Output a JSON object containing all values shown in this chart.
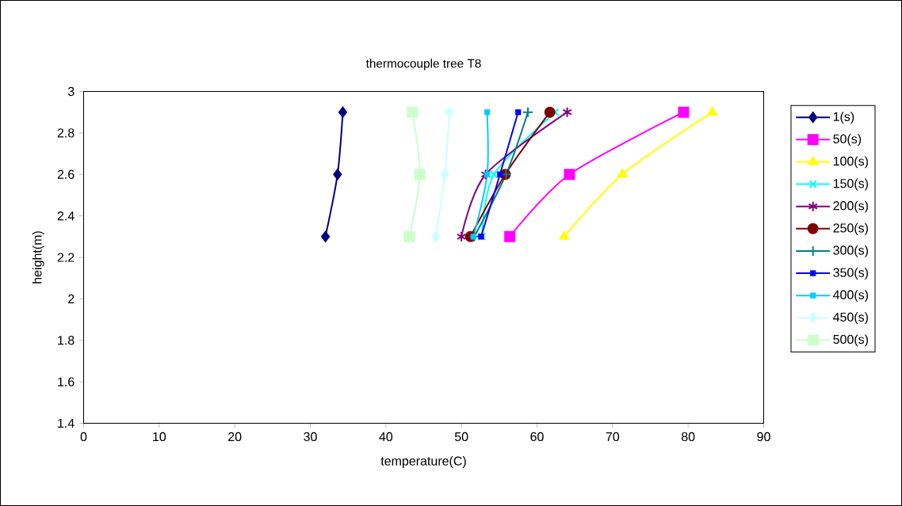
{
  "chart_data": {
    "type": "line",
    "title": "thermocouple tree T8",
    "xlabel": "temperature(C)",
    "ylabel": "height(m)",
    "xlim": [
      0,
      90
    ],
    "xticks": [
      0,
      10,
      20,
      30,
      40,
      50,
      60,
      70,
      80,
      90
    ],
    "ylim": [
      1.4,
      3
    ],
    "yticks": [
      1.4,
      1.6,
      1.8,
      2,
      2.2,
      2.4,
      2.6,
      2.8,
      3
    ],
    "grid": false,
    "legend": "right",
    "series": [
      {
        "name": "1(s)",
        "color": "#000080",
        "marker": "diamond",
        "x": [
          32.0,
          33.6,
          34.3
        ],
        "values": [
          2.3,
          2.6,
          2.9
        ]
      },
      {
        "name": "50(s)",
        "color": "#ff00ff",
        "marker": "square",
        "x": [
          56.4,
          64.3,
          79.4
        ],
        "values": [
          2.3,
          2.6,
          2.9
        ]
      },
      {
        "name": "100(s)",
        "color": "#ffff00",
        "marker": "triangle",
        "x": [
          63.6,
          71.3,
          83.2
        ],
        "values": [
          2.3,
          2.6,
          2.9
        ]
      },
      {
        "name": "150(s)",
        "color": "#00ffff",
        "marker": "cross",
        "x": [
          52.7,
          54.3,
          62.4
        ],
        "values": [
          2.3,
          2.6,
          2.9
        ]
      },
      {
        "name": "200(s)",
        "color": "#800080",
        "marker": "cross",
        "x": [
          50.0,
          53.2,
          64.0
        ],
        "values": [
          2.3,
          2.6,
          2.9
        ]
      },
      {
        "name": "250(s)",
        "color": "#800000",
        "marker": "circle",
        "x": [
          51.2,
          55.8,
          61.7
        ],
        "values": [
          2.3,
          2.6,
          2.9
        ]
      },
      {
        "name": "300(s)",
        "color": "#008080",
        "marker": "plus",
        "x": [
          51.7,
          55.9,
          58.8
        ],
        "values": [
          2.3,
          2.6,
          2.9
        ]
      },
      {
        "name": "350(s)",
        "color": "#0000ff",
        "marker": "square",
        "x": [
          52.6,
          55.1,
          57.5
        ],
        "values": [
          2.3,
          2.6,
          2.9
        ]
      },
      {
        "name": "400(s)",
        "color": "#00ccff",
        "marker": "square",
        "x": [
          51.6,
          53.4,
          53.4
        ],
        "values": [
          2.3,
          2.6,
          2.9
        ]
      },
      {
        "name": "450(s)",
        "color": "#ccffff",
        "marker": "diamond",
        "x": [
          46.6,
          47.8,
          48.4
        ],
        "values": [
          2.3,
          2.6,
          2.9
        ]
      },
      {
        "name": "500(s)",
        "color": "#ccffcc",
        "marker": "square",
        "x": [
          43.1,
          44.5,
          43.5
        ],
        "values": [
          2.3,
          2.6,
          2.9
        ]
      }
    ]
  }
}
